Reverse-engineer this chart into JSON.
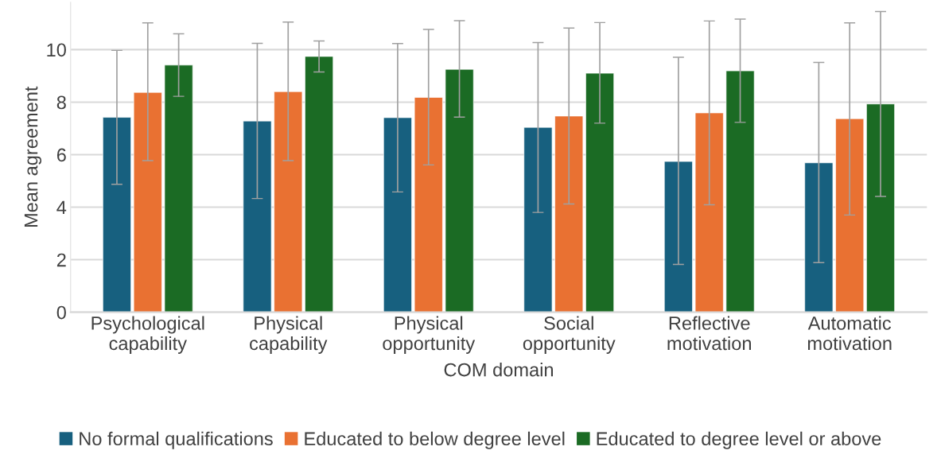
{
  "chart_data": {
    "type": "bar",
    "xlabel": "COM domain",
    "ylabel": "Mean agreement",
    "categories": [
      "Psychological capability",
      "Physical capability",
      "Physical opportunity",
      "Social opportunity",
      "Reflective motivation",
      "Automatic motivation"
    ],
    "series": [
      {
        "name": "No formal qualifications",
        "color": "#17607f",
        "values": [
          7.42,
          7.28,
          7.41,
          7.04,
          5.74,
          5.69
        ],
        "errors": [
          [
            4.87,
            9.97
          ],
          [
            4.33,
            10.24
          ],
          [
            4.58,
            10.23
          ],
          [
            3.8,
            10.27
          ],
          [
            1.82,
            9.71
          ],
          [
            1.89,
            9.51
          ]
        ]
      },
      {
        "name": "Educated to below degree level",
        "color": "#e97132",
        "values": [
          8.37,
          8.4,
          8.18,
          7.47,
          7.59,
          7.37
        ],
        "errors": [
          [
            5.77,
            11.02
          ],
          [
            5.77,
            11.05
          ],
          [
            5.61,
            10.77
          ],
          [
            4.12,
            10.82
          ],
          [
            4.09,
            11.09
          ],
          [
            3.7,
            11.02
          ]
        ]
      },
      {
        "name": "Educated to degree level or above",
        "color": "#1b6b24",
        "values": [
          9.41,
          9.74,
          9.25,
          9.1,
          9.19,
          7.93
        ],
        "errors": [
          [
            8.22,
            10.6
          ],
          [
            9.15,
            10.33
          ],
          [
            7.43,
            11.1
          ],
          [
            7.2,
            11.03
          ],
          [
            7.23,
            11.16
          ],
          [
            4.41,
            11.45
          ]
        ]
      }
    ],
    "ylim": [
      0,
      11.8
    ],
    "yticks": [
      0,
      2,
      4,
      6,
      8,
      10
    ],
    "grid": "y",
    "legend": "bottom"
  }
}
